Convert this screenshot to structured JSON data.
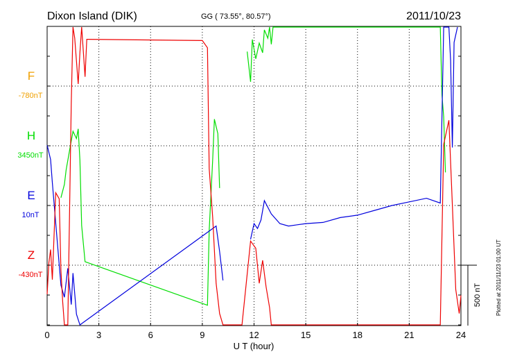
{
  "header": {
    "station": "Dixon Island (DIK)",
    "coords": "GG ( 73.55°,  80.57°)",
    "date": "2011/10/23"
  },
  "side_note": "Plotted at 2011/11/23 01:00 UT",
  "scale_label": "500 nT",
  "colors": {
    "F": "#f0a000",
    "H": "#00dd00",
    "E": "#0000dd",
    "Z": "#ee0000"
  },
  "chart_data": {
    "type": "line",
    "xlabel": "U T (hour)",
    "xlim": [
      0,
      24
    ],
    "xticks": [
      "0",
      "3",
      "6",
      "9",
      "12",
      "15",
      "18",
      "21",
      "24"
    ],
    "scale_bar_nT": 500,
    "series": [
      {
        "name": "F",
        "baseline": "-780nT",
        "color": "#f0a000",
        "points": []
      },
      {
        "name": "H",
        "baseline": "3450nT",
        "color": "#00dd00",
        "points": [
          [
            0.8,
            -430
          ],
          [
            1.0,
            -320
          ],
          [
            1.1,
            -200
          ],
          [
            1.3,
            -40
          ],
          [
            1.5,
            120
          ],
          [
            1.7,
            60
          ],
          [
            1.8,
            140
          ],
          [
            1.9,
            -120
          ],
          [
            2.0,
            -660
          ],
          [
            2.2,
            -960
          ],
          [
            9.3,
            -1320
          ],
          [
            9.4,
            -700
          ],
          [
            9.6,
            -120
          ],
          [
            9.7,
            220
          ],
          [
            9.8,
            160
          ],
          [
            9.9,
            100
          ],
          [
            10.0,
            -350
          ],
          [
            11.6,
            780
          ],
          [
            11.8,
            530
          ],
          [
            11.9,
            880
          ],
          [
            12.1,
            720
          ],
          [
            12.3,
            850
          ],
          [
            12.5,
            770
          ],
          [
            12.6,
            960
          ],
          [
            12.8,
            890
          ],
          [
            12.9,
            1000
          ],
          [
            13.0,
            840
          ],
          [
            13.1,
            1550
          ],
          [
            22.8,
            1550
          ],
          [
            22.9,
            420
          ],
          [
            23.0,
            240
          ],
          [
            23.1,
            -220
          ]
        ]
      },
      {
        "name": "E",
        "baseline": "10nT",
        "color": "#0000dd",
        "points": [
          [
            0,
            500
          ],
          [
            0.2,
            380
          ],
          [
            0.3,
            190
          ],
          [
            0.8,
            -660
          ],
          [
            1.0,
            -760
          ],
          [
            1.2,
            -520
          ],
          [
            1.4,
            -820
          ],
          [
            1.5,
            -560
          ],
          [
            1.7,
            -900
          ],
          [
            1.9,
            -1000
          ],
          [
            9.8,
            -170
          ],
          [
            10.0,
            -380
          ],
          [
            10.2,
            -620
          ],
          [
            11.8,
            -280
          ],
          [
            12.0,
            -150
          ],
          [
            12.2,
            -190
          ],
          [
            12.4,
            -120
          ],
          [
            12.6,
            40
          ],
          [
            13.0,
            -70
          ],
          [
            13.5,
            -150
          ],
          [
            14.0,
            -170
          ],
          [
            14.5,
            -160
          ],
          [
            15.0,
            -150
          ],
          [
            16.0,
            -140
          ],
          [
            17.0,
            -100
          ],
          [
            18.0,
            -80
          ],
          [
            19.0,
            -40
          ],
          [
            20.0,
            0
          ],
          [
            21.0,
            30
          ],
          [
            22.0,
            60
          ],
          [
            22.8,
            20
          ],
          [
            23.0,
            1500
          ],
          [
            23.1,
            1700
          ],
          [
            23.3,
            1900
          ],
          [
            23.4,
            1200
          ],
          [
            23.5,
            480
          ],
          [
            23.6,
            1350
          ],
          [
            23.8,
            1900
          ]
        ]
      },
      {
        "name": "Z",
        "baseline": "-430nT",
        "color": "#ee0000",
        "points": [
          [
            0,
            -240
          ],
          [
            0.1,
            20
          ],
          [
            0.2,
            130
          ],
          [
            0.3,
            -120
          ],
          [
            0.5,
            600
          ],
          [
            0.7,
            550
          ],
          [
            0.8,
            -40
          ],
          [
            0.9,
            -300
          ],
          [
            1.0,
            -780
          ],
          [
            1.2,
            -500
          ],
          [
            1.4,
            1340
          ],
          [
            1.5,
            2040
          ],
          [
            1.6,
            1880
          ],
          [
            1.8,
            1500
          ],
          [
            1.9,
            1760
          ],
          [
            2.0,
            2020
          ],
          [
            2.2,
            1560
          ],
          [
            2.3,
            1870
          ],
          [
            9.0,
            1860
          ],
          [
            9.3,
            1800
          ],
          [
            9.4,
            800
          ],
          [
            9.6,
            400
          ],
          [
            9.8,
            -150
          ],
          [
            10.0,
            -400
          ],
          [
            10.2,
            -900
          ],
          [
            10.5,
            -1200
          ],
          [
            11.0,
            -1280
          ],
          [
            11.3,
            -1300
          ],
          [
            11.8,
            200
          ],
          [
            12.1,
            140
          ],
          [
            12.3,
            -150
          ],
          [
            12.5,
            40
          ],
          [
            12.7,
            -180
          ],
          [
            12.9,
            -350
          ],
          [
            13.0,
            -600
          ],
          [
            13.2,
            -700
          ],
          [
            13.5,
            -820
          ],
          [
            14.0,
            -830
          ],
          [
            14.5,
            -800
          ],
          [
            15.0,
            -810
          ],
          [
            15.5,
            -830
          ],
          [
            16.0,
            -820
          ],
          [
            16.5,
            -860
          ],
          [
            17.0,
            -800
          ],
          [
            17.5,
            -780
          ],
          [
            18.0,
            -740
          ],
          [
            19.0,
            -740
          ],
          [
            20.0,
            -730
          ],
          [
            21.0,
            -730
          ],
          [
            22.0,
            -730
          ],
          [
            22.8,
            -700
          ],
          [
            23.0,
            1000
          ],
          [
            23.3,
            1200
          ],
          [
            23.5,
            500
          ],
          [
            23.7,
            -200
          ],
          [
            23.9,
            -400
          ],
          [
            24.0,
            -250
          ]
        ]
      }
    ]
  }
}
